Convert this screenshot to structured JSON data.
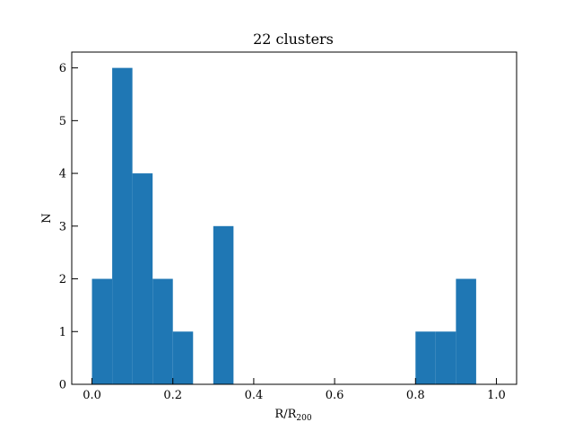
{
  "chart_data": {
    "type": "bar",
    "title": "22 clusters",
    "xlabel_main": "R/R",
    "xlabel_sub": "200",
    "ylabel": "N",
    "bin_width": 0.05,
    "bins": [
      {
        "x0": 0.0,
        "value": 2
      },
      {
        "x0": 0.05,
        "value": 6
      },
      {
        "x0": 0.1,
        "value": 4
      },
      {
        "x0": 0.15,
        "value": 2
      },
      {
        "x0": 0.2,
        "value": 1
      },
      {
        "x0": 0.25,
        "value": 0
      },
      {
        "x0": 0.3,
        "value": 3
      },
      {
        "x0": 0.35,
        "value": 0
      },
      {
        "x0": 0.4,
        "value": 0
      },
      {
        "x0": 0.45,
        "value": 0
      },
      {
        "x0": 0.5,
        "value": 0
      },
      {
        "x0": 0.55,
        "value": 0
      },
      {
        "x0": 0.6,
        "value": 0
      },
      {
        "x0": 0.65,
        "value": 0
      },
      {
        "x0": 0.7,
        "value": 0
      },
      {
        "x0": 0.75,
        "value": 0
      },
      {
        "x0": 0.8,
        "value": 1
      },
      {
        "x0": 0.85,
        "value": 1
      },
      {
        "x0": 0.9,
        "value": 2
      }
    ],
    "xlim": [
      -0.05,
      1.05
    ],
    "ylim": [
      0,
      6.3
    ],
    "xticks": [
      {
        "value": 0.0,
        "label": "0.0"
      },
      {
        "value": 0.2,
        "label": "0.2"
      },
      {
        "value": 0.4,
        "label": "0.4"
      },
      {
        "value": 0.6,
        "label": "0.6"
      },
      {
        "value": 0.8,
        "label": "0.8"
      },
      {
        "value": 1.0,
        "label": "1.0"
      }
    ],
    "yticks": [
      {
        "value": 0,
        "label": "0"
      },
      {
        "value": 1,
        "label": "1"
      },
      {
        "value": 2,
        "label": "2"
      },
      {
        "value": 3,
        "label": "3"
      },
      {
        "value": 4,
        "label": "4"
      },
      {
        "value": 5,
        "label": "5"
      },
      {
        "value": 6,
        "label": "6"
      }
    ],
    "bar_color": "#1f77b4",
    "grid": false,
    "tick_direction": "in"
  }
}
